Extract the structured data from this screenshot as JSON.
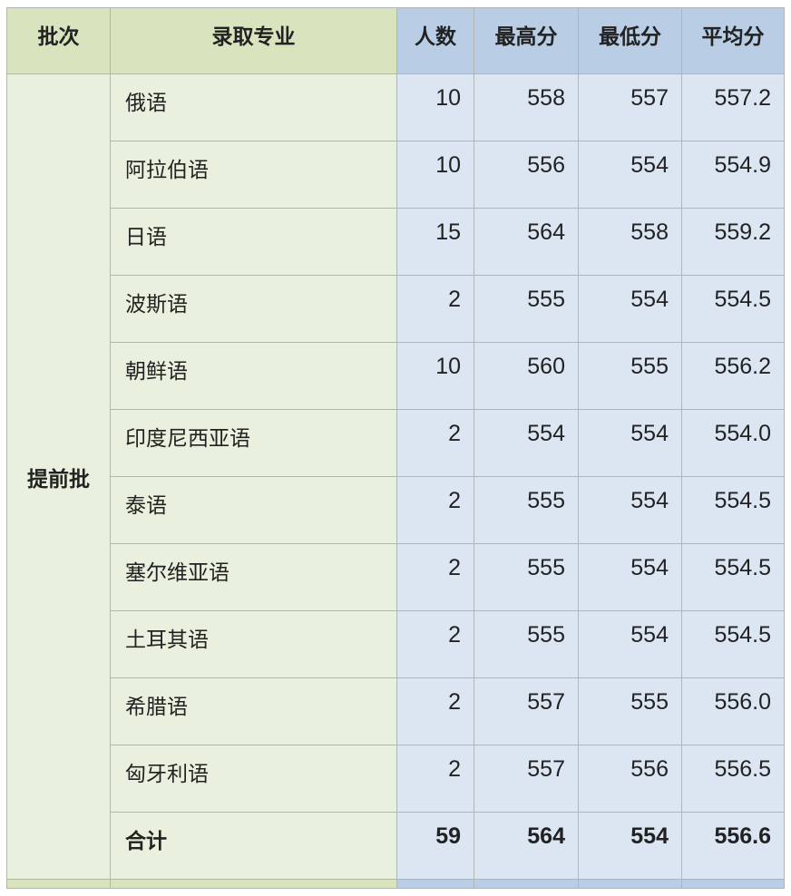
{
  "headers": [
    "批次",
    "录取专业",
    "人数",
    "最高分",
    "最低分",
    "平均分"
  ],
  "batch": "提前批",
  "rows": [
    {
      "major": "俄语",
      "count": "10",
      "max": "558",
      "min": "557",
      "avg": "557.2"
    },
    {
      "major": "阿拉伯语",
      "count": "10",
      "max": "556",
      "min": "554",
      "avg": "554.9"
    },
    {
      "major": "日语",
      "count": "15",
      "max": "564",
      "min": "558",
      "avg": "559.2"
    },
    {
      "major": "波斯语",
      "count": "2",
      "max": "555",
      "min": "554",
      "avg": "554.5"
    },
    {
      "major": "朝鲜语",
      "count": "10",
      "max": "560",
      "min": "555",
      "avg": "556.2"
    },
    {
      "major": "印度尼西亚语",
      "count": "2",
      "max": "554",
      "min": "554",
      "avg": "554.0"
    },
    {
      "major": "泰语",
      "count": "2",
      "max": "555",
      "min": "554",
      "avg": "554.5"
    },
    {
      "major": "塞尔维亚语",
      "count": "2",
      "max": "555",
      "min": "554",
      "avg": "554.5"
    },
    {
      "major": "土耳其语",
      "count": "2",
      "max": "555",
      "min": "554",
      "avg": "554.5"
    },
    {
      "major": "希腊语",
      "count": "2",
      "max": "557",
      "min": "555",
      "avg": "556.0"
    },
    {
      "major": "匈牙利语",
      "count": "2",
      "max": "557",
      "min": "556",
      "avg": "556.5"
    }
  ],
  "total": {
    "major": "合计",
    "count": "59",
    "max": "564",
    "min": "554",
    "avg": "556.6"
  },
  "colors": {
    "header_green": "#d7e4bd",
    "header_blue": "#b9cde5",
    "body_green": "#e9f0dd",
    "body_blue": "#dce6f2"
  }
}
